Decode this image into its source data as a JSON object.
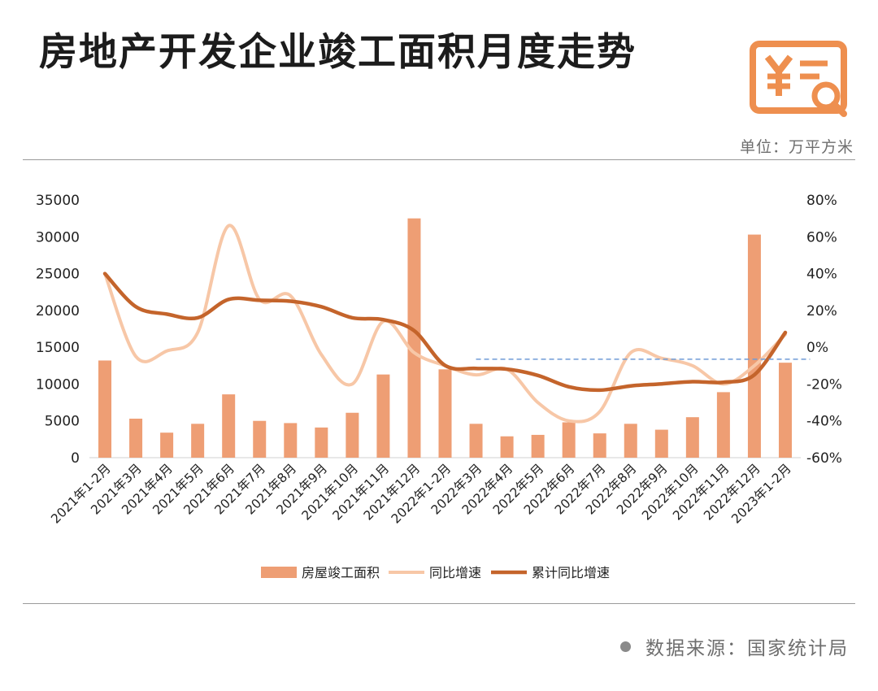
{
  "header": {
    "title": "房地产开发企业竣工面积月度走势",
    "unit": "单位：万平方米",
    "logo_icon": "yuan-receipt-search-icon"
  },
  "footer": {
    "source": "数据来源：国家统计局"
  },
  "colors": {
    "bar": "#EE9E74",
    "yoy_line": "#F7C7A7",
    "cum_line": "#C4642B",
    "ref_line": "#6E9BD6",
    "logo": "#EE8F4F"
  },
  "chart_data": {
    "type": "bar",
    "categories": [
      "2021年1-2月",
      "2021年3月",
      "2021年4月",
      "2021年5月",
      "2021年6月",
      "2021年7月",
      "2021年8月",
      "2021年9月",
      "2021年10月",
      "2021年11月",
      "2021年12月",
      "2022年1-2月",
      "2022年3月",
      "2022年4月",
      "2022年5月",
      "2022年6月",
      "2022年7月",
      "2022年8月",
      "2022年9月",
      "2022年10月",
      "2022年11月",
      "2022年12月",
      "2023年1-2月"
    ],
    "series": [
      {
        "name": "房屋竣工面积",
        "type": "bar",
        "axis": "left",
        "values": [
          13200,
          5300,
          3400,
          4600,
          8600,
          5000,
          4700,
          4100,
          6100,
          11300,
          32500,
          12000,
          4600,
          2900,
          3100,
          4800,
          3300,
          4600,
          3800,
          5500,
          8900,
          30300,
          12900
        ]
      },
      {
        "name": "同比增速",
        "type": "line",
        "axis": "right",
        "values": [
          40.0,
          -5.0,
          -2.0,
          8.0,
          66.0,
          26.0,
          28.0,
          -4.0,
          -20.0,
          14.0,
          -3.0,
          -10.0,
          -15.0,
          -12.0,
          -30.0,
          -40.0,
          -35.0,
          -3.0,
          -6.0,
          -10.0,
          -20.0,
          -10.0,
          7.0
        ]
      },
      {
        "name": "累计同比增速",
        "type": "line",
        "axis": "right",
        "values": [
          40.0,
          22.0,
          18.0,
          16.0,
          26.0,
          25.5,
          25.0,
          22.0,
          16.0,
          15.0,
          9.0,
          -9.9,
          -11.5,
          -11.9,
          -15.3,
          -21.5,
          -23.3,
          -21.0,
          -19.9,
          -18.7,
          -19.0,
          -15.0,
          8.0
        ]
      }
    ],
    "y_left": {
      "min": 0,
      "max": 35000,
      "ticks": [
        "0",
        "5000",
        "10000",
        "15000",
        "20000",
        "25000",
        "30000",
        "35000"
      ]
    },
    "y_right": {
      "min": -60,
      "max": 80,
      "ticks": [
        "-60%",
        "-40%",
        "-20%",
        "0%",
        "20%",
        "40%",
        "60%",
        "80%"
      ]
    },
    "reference_line": {
      "y_right": -6.5,
      "style": "dashed",
      "from_category": 12,
      "to_category": 22.8
    },
    "grid": false,
    "legend_position": "bottom"
  }
}
